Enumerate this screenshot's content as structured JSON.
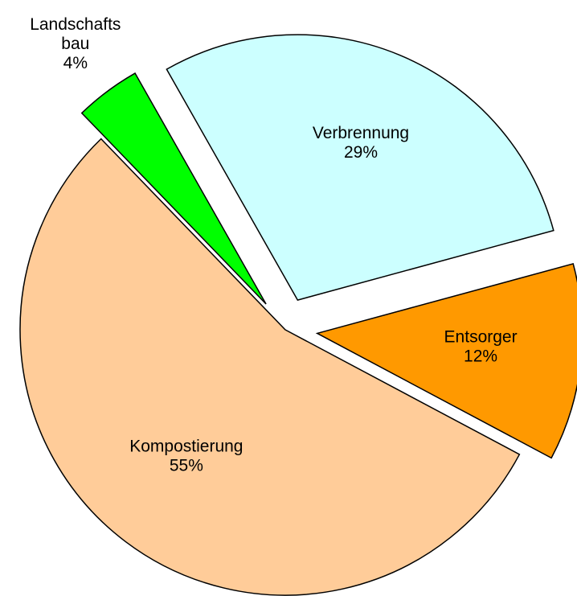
{
  "chart_data": {
    "type": "pie",
    "categories": [
      "Verbrennung",
      "Entsorger",
      "Kompostierung",
      "Landschafts\nbau"
    ],
    "values": [
      29,
      12,
      55,
      4
    ],
    "value_labels": [
      "29%",
      "12%",
      "55%",
      "4%"
    ],
    "colors": [
      "#ccffff",
      "#ff9900",
      "#ffcc99",
      "#00ff00"
    ]
  }
}
